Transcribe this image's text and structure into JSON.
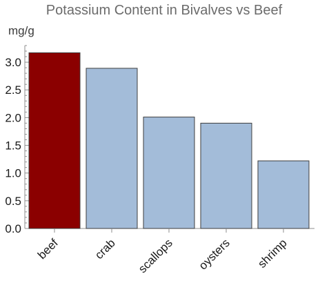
{
  "chart_data": {
    "type": "bar",
    "title": "Potassium Content in Bivalves vs Beef",
    "ylabel": "mg/g",
    "xlabel": "",
    "categories": [
      "beef",
      "crab",
      "scallops",
      "oysters",
      "shrimp"
    ],
    "values": [
      3.17,
      2.89,
      2.01,
      1.9,
      1.22
    ],
    "colors": [
      "#8b0000",
      "#a3bcd9",
      "#a3bcd9",
      "#a3bcd9",
      "#a3bcd9"
    ],
    "ylim": [
      0,
      3.3
    ],
    "yticks": [
      {
        "value": 0.0,
        "label": "0.0"
      },
      {
        "value": 0.5,
        "label": "0.5"
      },
      {
        "value": 1.0,
        "label": "1.0"
      },
      {
        "value": 1.5,
        "label": "1.5"
      },
      {
        "value": 2.0,
        "label": "2.0"
      },
      {
        "value": 2.5,
        "label": "2.5"
      },
      {
        "value": 3.0,
        "label": "3.0"
      }
    ],
    "grid": false,
    "legend": "none"
  }
}
